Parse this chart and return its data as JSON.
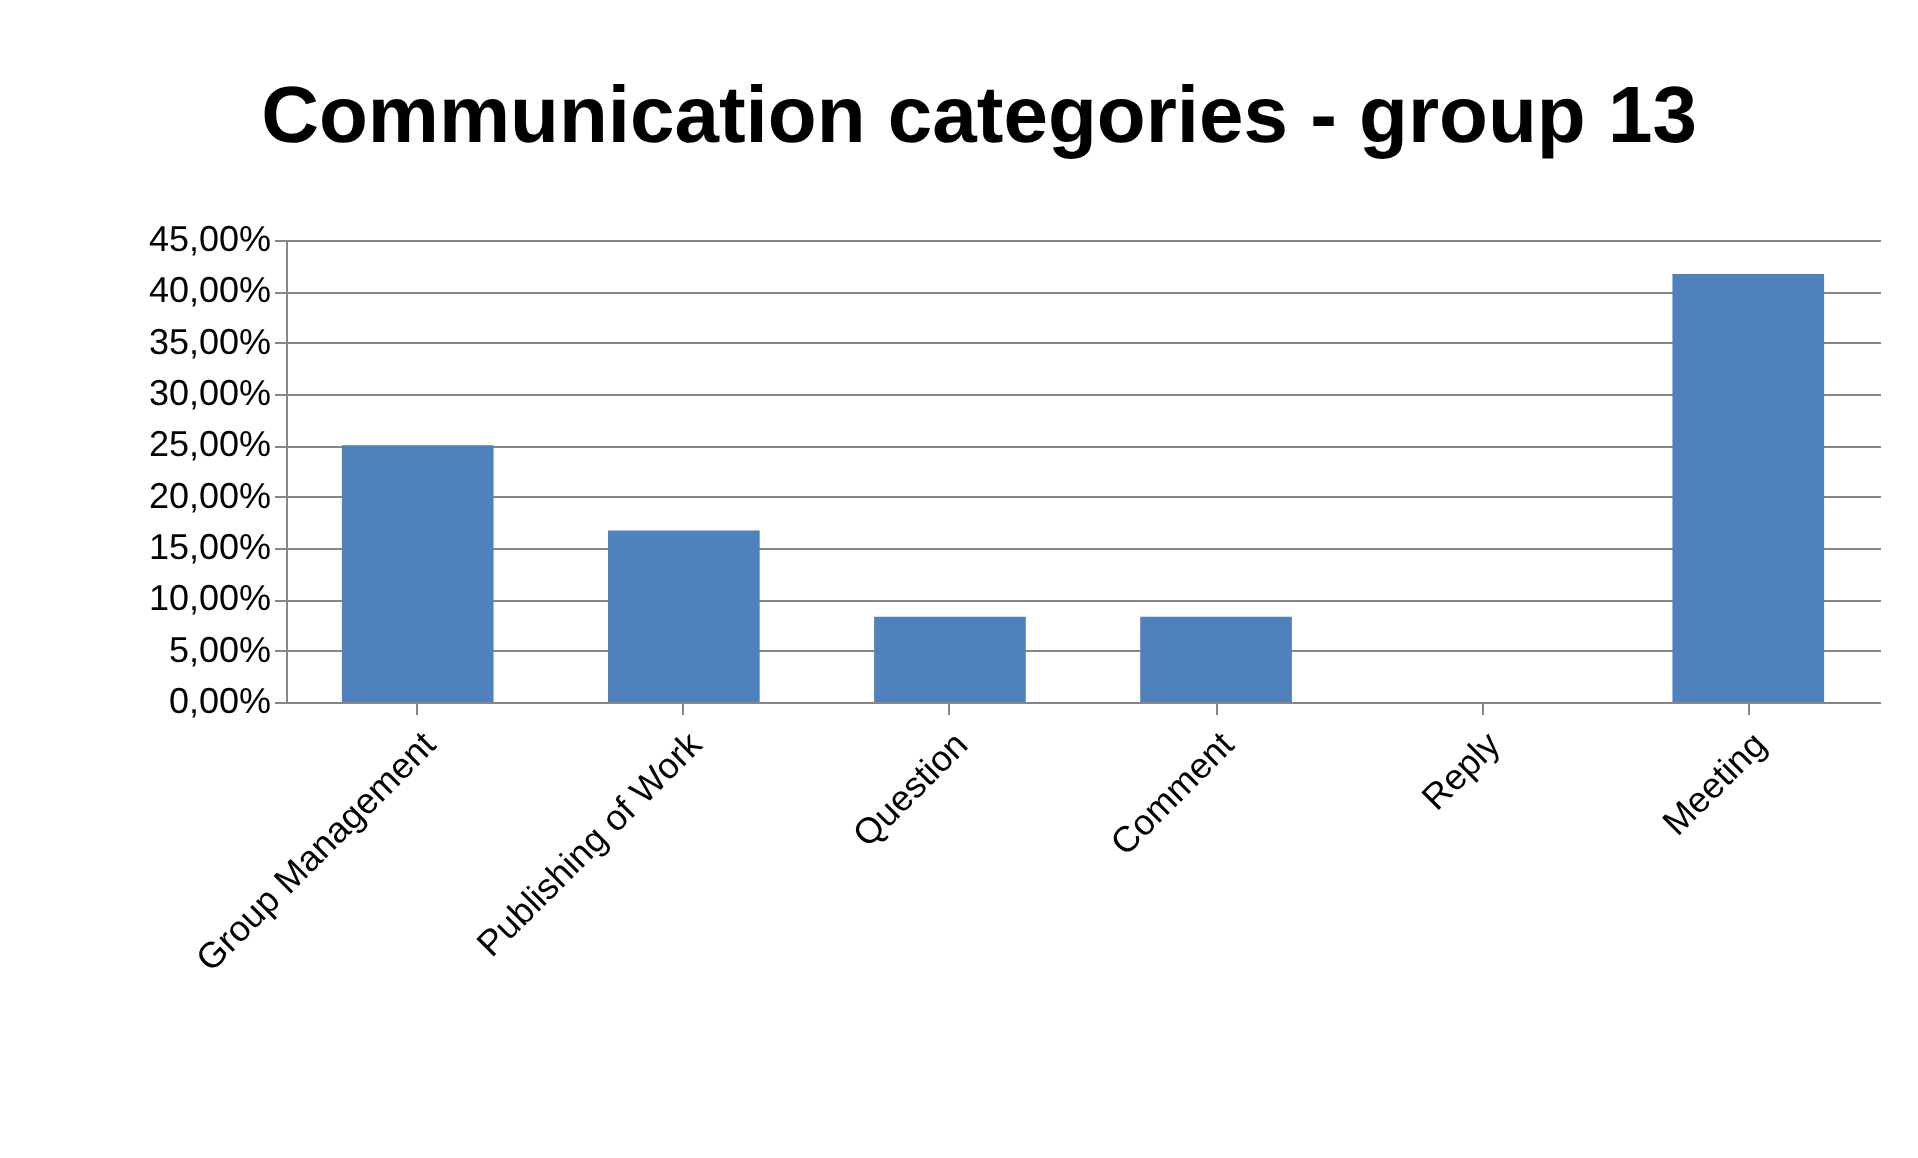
{
  "chart_data": {
    "type": "bar",
    "title": "Communication categories - group 13",
    "categories": [
      "Group Management",
      "Publishing of Work",
      "Question",
      "Comment",
      "Reply",
      "Meeting"
    ],
    "values": [
      25,
      16.7,
      8.3,
      8.3,
      0,
      41.7
    ],
    "color": "#4f81bd",
    "ylim": [
      0,
      45
    ],
    "yticks": [
      {
        "value": 0,
        "label": "0,00%"
      },
      {
        "value": 5,
        "label": "5,00%"
      },
      {
        "value": 10,
        "label": "10,00%"
      },
      {
        "value": 15,
        "label": "15,00%"
      },
      {
        "value": 20,
        "label": "20,00%"
      },
      {
        "value": 25,
        "label": "25,00%"
      },
      {
        "value": 30,
        "label": "30,00%"
      },
      {
        "value": 35,
        "label": "35,00%"
      },
      {
        "value": 40,
        "label": "40,00%"
      },
      {
        "value": 45,
        "label": "45,00%"
      }
    ],
    "grid": "y"
  }
}
